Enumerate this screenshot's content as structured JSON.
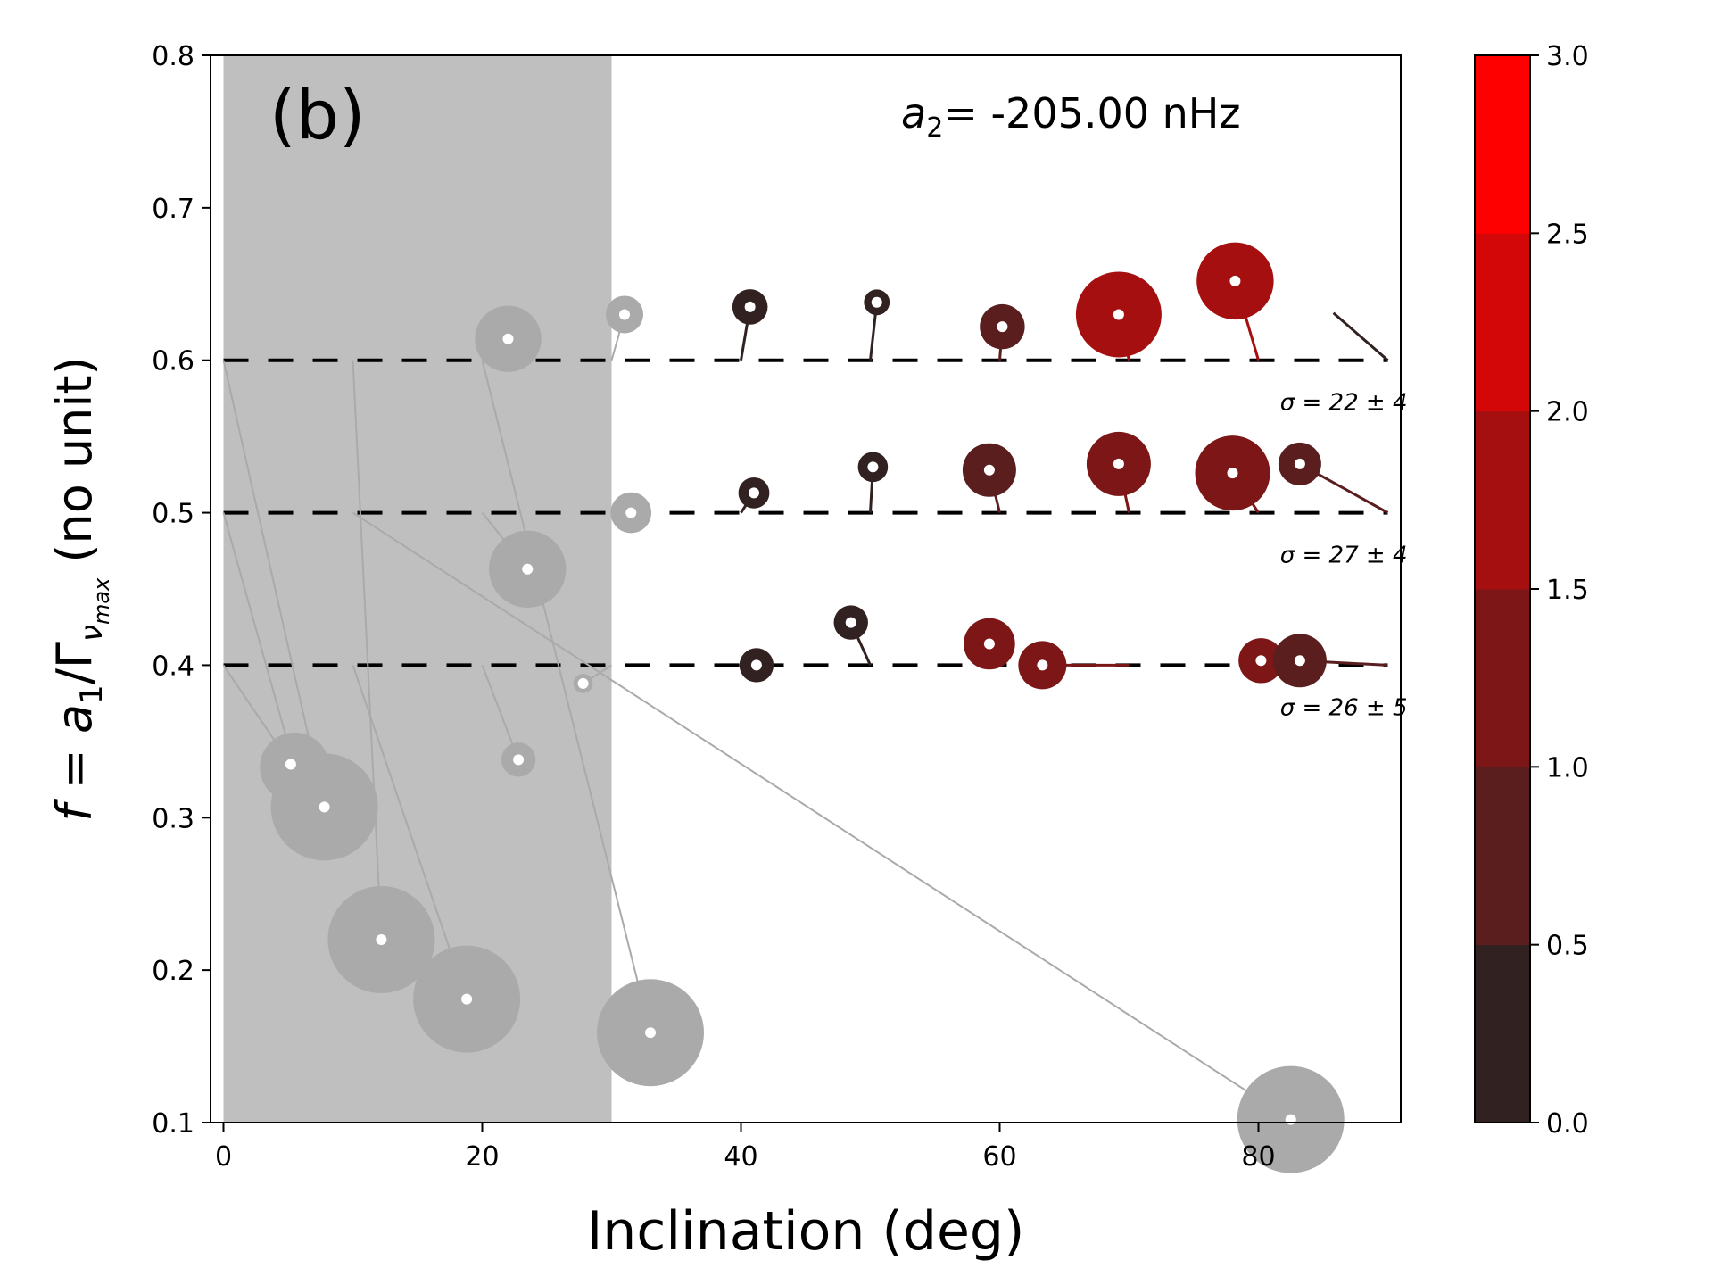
{
  "chart_data": {
    "type": "scatter",
    "title": "",
    "panel_label": "(b)",
    "annotation": {
      "prefix": "a",
      "subscript": "2",
      "text": "= -205.00 nHz"
    },
    "xlabel": "Inclination (deg)",
    "ylabel": {
      "main": "f = a",
      "sub1": "1",
      "mid": "/Γ",
      "sub2": "ν",
      "sub3": "max",
      "suffix": "  (no unit)"
    },
    "xlim": [
      -1,
      91
    ],
    "ylim": [
      0.1,
      0.8
    ],
    "xticks": [
      0,
      20,
      40,
      60,
      80
    ],
    "xtick_labels": [
      "0",
      "20",
      "40",
      "60",
      "80"
    ],
    "yticks": [
      0.1,
      0.2,
      0.3,
      0.4,
      0.5,
      0.6,
      0.7,
      0.8
    ],
    "ytick_labels": [
      "0.1",
      "0.2",
      "0.3",
      "0.4",
      "0.5",
      "0.6",
      "0.7",
      "0.8"
    ],
    "excluded_region": {
      "x0": 0,
      "x1": 30,
      "color": "#bfbfbf"
    },
    "reference_lines": [
      {
        "y": 0.6,
        "label": "σ = 22 ± 4"
      },
      {
        "y": 0.5,
        "label": "σ = 27 ± 4"
      },
      {
        "y": 0.4,
        "label": "σ = 26 ± 5"
      }
    ],
    "colorbar": {
      "min": 0.0,
      "max": 3.0,
      "ticks": [
        0.0,
        0.5,
        1.0,
        1.5,
        2.0,
        2.5,
        3.0
      ],
      "tick_labels": [
        "0.0",
        "0.5",
        "1.0",
        "1.5",
        "2.0",
        "2.5",
        "3.0"
      ],
      "colors": [
        "#312121",
        "#5a1e1e",
        "#7d1616",
        "#a60f0f",
        "#d30707",
        "#ff0000"
      ]
    },
    "excluded_color": "#aaaaaa",
    "points": [
      {
        "x0": 0,
        "y0": 0.6,
        "x": 7.8,
        "y": 0.307,
        "size": 1.0,
        "excluded": true
      },
      {
        "x0": 0,
        "y0": 0.5,
        "x": 5.5,
        "y": 0.333,
        "size": 0.65,
        "excluded": true
      },
      {
        "x0": 0,
        "y0": 0.4,
        "x": 5.2,
        "y": 0.335,
        "size": 0.3,
        "excluded": true
      },
      {
        "x0": 10,
        "y0": 0.6,
        "x": 12.2,
        "y": 0.22,
        "size": 1.0,
        "excluded": true
      },
      {
        "x0": 10,
        "y0": 0.5,
        "x": 82.5,
        "y": 0.102,
        "size": 1.0,
        "excluded": true
      },
      {
        "x0": 10,
        "y0": 0.4,
        "x": 18.8,
        "y": 0.181,
        "size": 1.0,
        "excluded": true
      },
      {
        "x0": 20,
        "y0": 0.6,
        "x": 33.0,
        "y": 0.159,
        "size": 1.0,
        "excluded": true
      },
      {
        "x0": 20,
        "y0": 0.5,
        "x": 23.5,
        "y": 0.463,
        "size": 0.72,
        "excluded": true
      },
      {
        "x0": 20,
        "y0": 0.4,
        "x": 22.8,
        "y": 0.338,
        "size": 0.32,
        "excluded": true
      },
      {
        "x0": 22,
        "y0": 0.6,
        "x": 22.0,
        "y": 0.614,
        "size": 0.62,
        "excluded": true
      },
      {
        "x0": 30,
        "y0": 0.6,
        "x": 31.0,
        "y": 0.63,
        "size": 0.35,
        "excluded": true
      },
      {
        "x0": 30,
        "y0": 0.5,
        "x": 31.5,
        "y": 0.5,
        "size": 0.38,
        "excluded": true
      },
      {
        "x0": 30,
        "y0": 0.4,
        "x": 27.8,
        "y": 0.388,
        "size": 0.18,
        "excluded": true
      },
      {
        "x0": 40,
        "y0": 0.6,
        "x": 40.7,
        "y": 0.635,
        "size": 0.33,
        "value": 0.2,
        "excluded": false
      },
      {
        "x0": 40,
        "y0": 0.5,
        "x": 41.0,
        "y": 0.513,
        "size": 0.29,
        "value": 0.2,
        "excluded": false
      },
      {
        "x0": 40,
        "y0": 0.4,
        "x": 41.2,
        "y": 0.4,
        "size": 0.32,
        "value": 0.2,
        "excluded": false
      },
      {
        "x0": 50,
        "y0": 0.6,
        "x": 50.5,
        "y": 0.638,
        "size": 0.24,
        "value": 0.2,
        "excluded": false
      },
      {
        "x0": 50,
        "y0": 0.5,
        "x": 50.2,
        "y": 0.53,
        "size": 0.28,
        "value": 0.3,
        "excluded": false
      },
      {
        "x0": 50,
        "y0": 0.4,
        "x": 48.5,
        "y": 0.428,
        "size": 0.32,
        "value": 0.3,
        "excluded": false
      },
      {
        "x0": 60,
        "y0": 0.6,
        "x": 60.2,
        "y": 0.622,
        "size": 0.42,
        "value": 0.9,
        "excluded": false
      },
      {
        "x0": 60,
        "y0": 0.5,
        "x": 59.2,
        "y": 0.528,
        "size": 0.5,
        "value": 0.9,
        "excluded": false
      },
      {
        "x0": 60,
        "y0": 0.4,
        "x": 59.2,
        "y": 0.414,
        "size": 0.48,
        "value": 1.2,
        "excluded": false
      },
      {
        "x0": 70,
        "y0": 0.6,
        "x": 69.2,
        "y": 0.63,
        "size": 0.8,
        "value": 1.8,
        "excluded": false
      },
      {
        "x0": 70,
        "y0": 0.5,
        "x": 69.2,
        "y": 0.532,
        "size": 0.6,
        "value": 1.4,
        "excluded": false
      },
      {
        "x0": 70,
        "y0": 0.4,
        "x": 63.3,
        "y": 0.4,
        "size": 0.45,
        "value": 1.2,
        "excluded": false
      },
      {
        "x0": 80,
        "y0": 0.6,
        "x": 78.2,
        "y": 0.652,
        "size": 0.72,
        "value": 1.9,
        "excluded": false
      },
      {
        "x0": 80,
        "y0": 0.5,
        "x": 78.0,
        "y": 0.526,
        "size": 0.7,
        "value": 1.4,
        "excluded": false
      },
      {
        "x0": 80,
        "y0": 0.4,
        "x": 80.2,
        "y": 0.403,
        "size": 0.42,
        "value": 1.2,
        "excluded": false
      },
      {
        "x0": 90,
        "y0": 0.6,
        "x": 85.8,
        "y": 0.631,
        "size": 0.0,
        "value": 0.3,
        "excluded": false
      },
      {
        "x0": 90,
        "y0": 0.5,
        "x": 83.2,
        "y": 0.532,
        "size": 0.4,
        "value": 0.6,
        "excluded": false
      },
      {
        "x0": 90,
        "y0": 0.4,
        "x": 83.2,
        "y": 0.403,
        "size": 0.5,
        "value": 0.6,
        "excluded": false
      }
    ]
  }
}
